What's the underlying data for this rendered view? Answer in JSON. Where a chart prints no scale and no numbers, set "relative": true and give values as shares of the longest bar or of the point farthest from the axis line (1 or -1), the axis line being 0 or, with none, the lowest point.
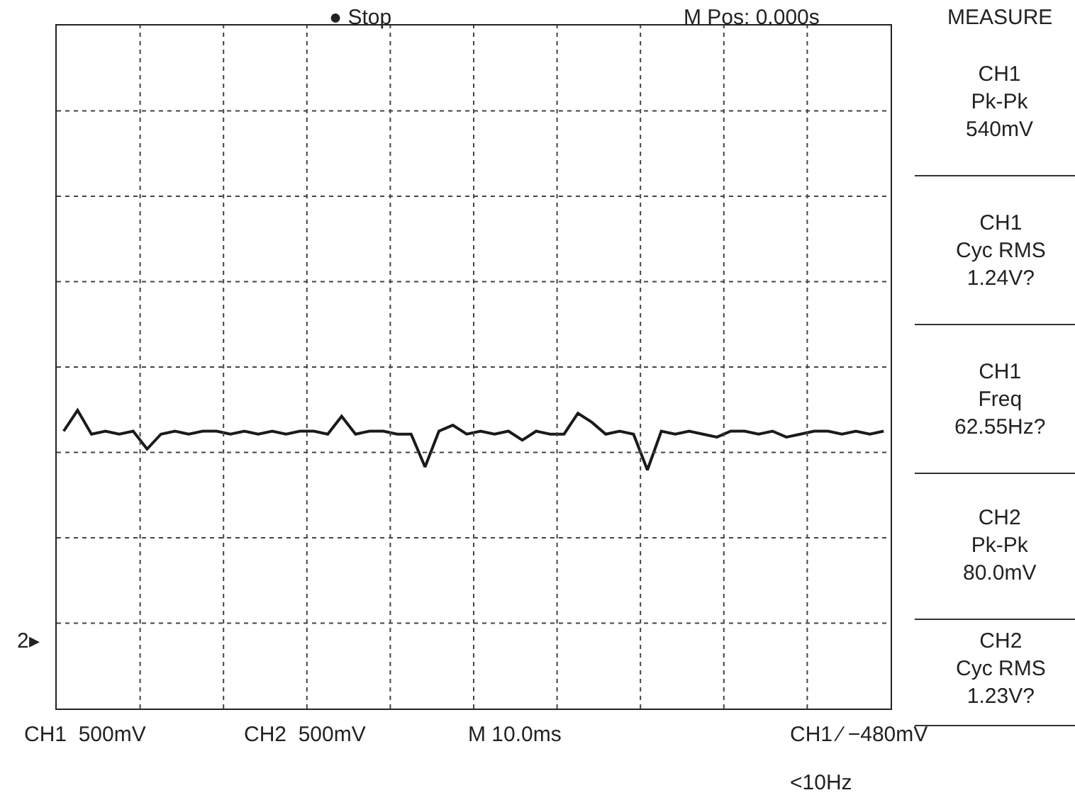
{
  "chart_data": {
    "type": "line",
    "relative": true,
    "grid": true,
    "categories": [
      null,
      null,
      null,
      null,
      null,
      null,
      null,
      null,
      null,
      null,
      null,
      null,
      null,
      null,
      null,
      null,
      null,
      null,
      null,
      null,
      null,
      null,
      null,
      null,
      null,
      null,
      null,
      null,
      null,
      null,
      null,
      null,
      null,
      null,
      null,
      null,
      null,
      null,
      null,
      null,
      null,
      null,
      null,
      null,
      null,
      null,
      null,
      null,
      null,
      null,
      null,
      null,
      null,
      null,
      null,
      null,
      null,
      null,
      null,
      null
    ],
    "series": [
      {
        "color": "#1a1a1a",
        "values": [
          0.93,
          1,
          0.92,
          0.93,
          0.92,
          0.93,
          0.87,
          0.92,
          0.93,
          0.92,
          0.93,
          0.93,
          0.92,
          0.93,
          0.92,
          0.93,
          0.92,
          0.93,
          0.93,
          0.92,
          0.98,
          0.92,
          0.93,
          0.93,
          0.92,
          0.92,
          0.81,
          0.93,
          0.95,
          0.92,
          0.93,
          0.92,
          0.93,
          0.9,
          0.93,
          0.92,
          0.92,
          0.99,
          0.96,
          0.92,
          0.93,
          0.92,
          0.8,
          0.93,
          0.92,
          0.93,
          0.92,
          0.91,
          0.93,
          0.93,
          0.92,
          0.93,
          0.91,
          0.92,
          0.93,
          0.93,
          0.92,
          0.93,
          0.92,
          0.93
        ]
      }
    ],
    "annotations": [
      "● Stop",
      "M Pos: 0.000s",
      "MEASURE",
      "CH1\nPk-Pk\n540mV",
      "CH1\nCyc RMS\n1.24V?",
      "CH1\nFreq\n62.55Hz?",
      "CH2\nPk-Pk\n80.0mV",
      "CH2\nCyc RMS\n1.23V?",
      "CH1  500mV",
      "CH2  500mV",
      "M 10.0ms",
      "CH1 ∕ −480mV",
      "<10Hz",
      "2▸"
    ]
  }
}
